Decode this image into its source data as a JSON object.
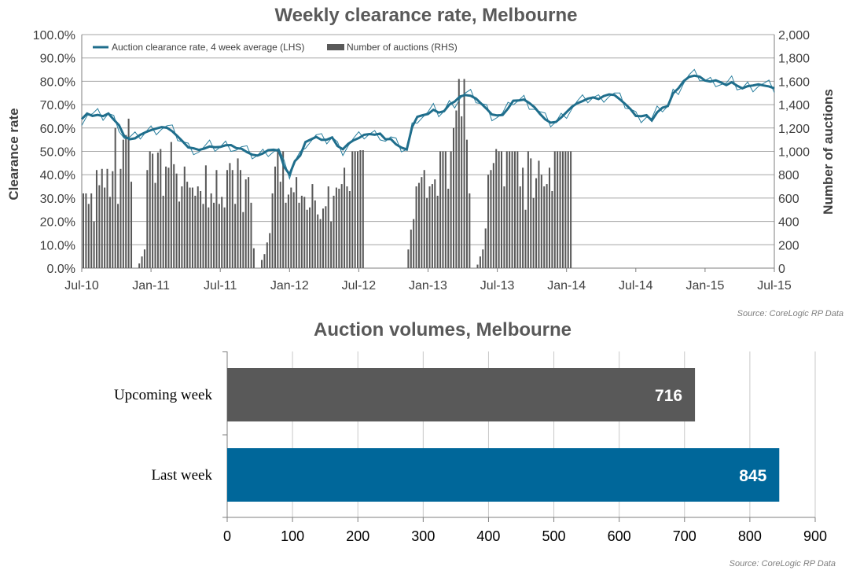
{
  "colors": {
    "line": "#1f6e8c",
    "weekly": "#2a7f9e",
    "bars": "#595959",
    "upcoming": "#595959",
    "last": "#00679a",
    "grid": "#a6a6a6"
  },
  "chart_data": [
    {
      "type": "line",
      "title": "Weekly clearance rate, Melbourne",
      "ylabel": "Clearance rate",
      "y2label": "Number of auctions",
      "ylim": [
        0,
        100
      ],
      "y2lim": [
        0,
        2000
      ],
      "yticks": [
        "0.0%",
        "10.0%",
        "20.0%",
        "30.0%",
        "40.0%",
        "50.0%",
        "60.0%",
        "70.0%",
        "80.0%",
        "90.0%",
        "100.0%"
      ],
      "y2ticks": [
        "0",
        "200",
        "400",
        "600",
        "800",
        "1,000",
        "1,200",
        "1,400",
        "1,600",
        "1,800",
        "2,000"
      ],
      "xticks": [
        "Jul-10",
        "Jan-11",
        "Jul-11",
        "Jan-12",
        "Jul-12",
        "Jan-13",
        "Jul-13",
        "Jan-14",
        "Jul-14",
        "Jan-15",
        "Jul-15"
      ],
      "legend": [
        "Auction clearance rate, 4 week average (LHS)",
        "Number of auctions (RHS)"
      ],
      "legend_position": "top-left",
      "grid": true,
      "source": "Source: CoreLogic RP Data",
      "series": [
        {
          "name": "Auction clearance rate, 4 week average (LHS)",
          "x": [
            0,
            2,
            4,
            6,
            8,
            10,
            12,
            14,
            16,
            18,
            20,
            22,
            24,
            26,
            28,
            30,
            32,
            34,
            36,
            38,
            40,
            42,
            44,
            46,
            48,
            50,
            52,
            54,
            56,
            58,
            60,
            62,
            64,
            66,
            68,
            70,
            72,
            74,
            76,
            78,
            80,
            82,
            84,
            86,
            88,
            90,
            92,
            94,
            96,
            98,
            100,
            102,
            104,
            106,
            108,
            110,
            112,
            114,
            116,
            118,
            120,
            122,
            124,
            126,
            128,
            130,
            132,
            134,
            136,
            138,
            140,
            142,
            144,
            146,
            148,
            150,
            152,
            154,
            156,
            158,
            160,
            162,
            164,
            166,
            168,
            170,
            172,
            174,
            176,
            178,
            180,
            182,
            184,
            186,
            188,
            190,
            192,
            194,
            196,
            198,
            200,
            202,
            204,
            206,
            208,
            210,
            212,
            214,
            216,
            218,
            220,
            222,
            224,
            226,
            228,
            230,
            232,
            234,
            236,
            238,
            240,
            242,
            244,
            246,
            248,
            250,
            252,
            254,
            256,
            258,
            260
          ],
          "values": [
            63.8,
            66.2,
            65.2,
            65.6,
            65.1,
            66.2,
            63.6,
            61.2,
            56.4,
            55.2,
            55.6,
            57.1,
            58.2,
            59.1,
            59.8,
            60.4,
            60.1,
            58.6,
            56.4,
            54.1,
            51.7,
            51.3,
            50.6,
            51.2,
            52.1,
            51.8,
            51.9,
            52.6,
            52.7,
            51.4,
            51.1,
            49.7,
            48.6,
            48.2,
            49.1,
            50.5,
            50.7,
            50.3,
            43.4,
            40.1,
            45.8,
            48.2,
            54.0,
            55.1,
            56.2,
            54.9,
            55.0,
            56.0,
            52.3,
            50.9,
            53.2,
            54.7,
            55.7,
            57.1,
            57.4,
            57.1,
            57.6,
            55.2,
            55.3,
            53.0,
            51.6,
            50.8,
            60.4,
            64.8,
            65.5,
            66.0,
            67.8,
            66.6,
            67.2,
            70.0,
            71.3,
            73.5,
            74.1,
            73.8,
            72.6,
            70.4,
            68.2,
            65.8,
            65.4,
            65.6,
            68.3,
            71.7,
            71.8,
            72.2,
            70.7,
            68.9,
            66.1,
            63.7,
            62.3,
            62.6,
            64.5,
            66.8,
            69.1,
            70.6,
            71.5,
            72.6,
            73.1,
            72.4,
            73.7,
            74.4,
            74.1,
            72.3,
            70.3,
            68.1,
            65.2,
            65.0,
            65.5,
            63.2,
            66.7,
            68.7,
            69.4,
            74.8,
            77.0,
            80.1,
            81.9,
            82.4,
            82.0,
            80.3,
            79.9,
            80.4,
            79.5,
            78.4,
            79.6,
            78.1,
            77.0,
            77.9,
            78.2,
            78.7,
            78.2,
            77.8,
            77.0
          ]
        },
        {
          "name": "Number of auctions (RHS)",
          "values": [
            640,
            640,
            550,
            640,
            400,
            840,
            710,
            850,
            690,
            850,
            610,
            830,
            1200,
            550,
            850,
            1100,
            1140,
            1280,
            740,
            0,
            0,
            40,
            100,
            160,
            840,
            1000,
            980,
            730,
            990,
            1020,
            620,
            870,
            860,
            1080,
            890,
            810,
            570,
            700,
            870,
            740,
            690,
            690,
            620,
            700,
            660,
            550,
            880,
            520,
            640,
            560,
            840,
            550,
            610,
            520,
            840,
            900,
            840,
            550,
            940,
            840,
            480,
            760,
            780,
            560,
            170,
            0,
            0,
            70,
            120,
            220,
            300,
            640,
            870,
            1000,
            740,
            1000,
            560,
            630,
            690,
            650,
            780,
            560,
            620,
            610,
            500,
            520,
            720,
            580,
            460,
            420,
            510,
            530,
            700,
            400,
            620,
            690,
            680,
            720,
            860,
            700,
            660,
            1000,
            1000,
            1000,
            1010,
            1010,
            0,
            0,
            0,
            0,
            0,
            0,
            0,
            0,
            0,
            0,
            0,
            0,
            0,
            0,
            0,
            0,
            160,
            330,
            420,
            700,
            730,
            780,
            840,
            600,
            700,
            720,
            760,
            620,
            1000,
            1000,
            1000,
            680,
            1000,
            1200,
            1350,
            1620,
            1300,
            1620,
            1100,
            640,
            0,
            0,
            30,
            100,
            160,
            340,
            800,
            840,
            900,
            1020,
            1000,
            1000,
            700,
            1000,
            1000,
            1000,
            1000,
            1000,
            700,
            860,
            500,
            1000,
            940,
            600,
            770,
            920,
            800,
            700,
            720,
            860,
            660,
            1000,
            1000,
            1000,
            1000,
            1000,
            1000,
            1000,
            0,
            0,
            0,
            0,
            0,
            0,
            0,
            0,
            0,
            0,
            0,
            0,
            0,
            0,
            0,
            0,
            0,
            0,
            0,
            0,
            0,
            0,
            0,
            0,
            0,
            0,
            0,
            0,
            0,
            0,
            0,
            0,
            0,
            0,
            0,
            0,
            0,
            0,
            0,
            0,
            0,
            0,
            0,
            0,
            0,
            0,
            0,
            0,
            0,
            0,
            0,
            0,
            0,
            0,
            0,
            0,
            0,
            0,
            0,
            0,
            0,
            0,
            0,
            0,
            0,
            0,
            0,
            0,
            0,
            0,
            0
          ]
        }
      ]
    },
    {
      "type": "bar",
      "orientation": "horizontal",
      "title": "Auction volumes, Melbourne",
      "categories": [
        "Upcoming week",
        "Last week"
      ],
      "values": [
        716,
        845
      ],
      "xlim": [
        0,
        900
      ],
      "xticks": [
        "0",
        "100",
        "200",
        "300",
        "400",
        "500",
        "600",
        "700",
        "800",
        "900"
      ],
      "grid": true,
      "source": "Source: CoreLogic RP Data"
    }
  ]
}
